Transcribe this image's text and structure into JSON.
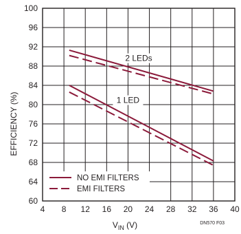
{
  "chart_data": {
    "type": "line",
    "ylabel": "EFFICIENCY (%)",
    "xlabel_main": "V",
    "xlabel_sub": "IN",
    "xlabel_unit": " (V)",
    "xlim": [
      4,
      40
    ],
    "ylim": [
      60,
      100
    ],
    "x_ticks": [
      4,
      8,
      12,
      16,
      20,
      24,
      28,
      32,
      36,
      40
    ],
    "y_ticks": [
      60,
      64,
      68,
      72,
      76,
      80,
      84,
      88,
      92,
      96,
      100
    ],
    "grid": true,
    "colors": {
      "series": "#8b1a3a",
      "grid": "#231f20",
      "frame": "#231f20",
      "text": "#231f20"
    },
    "series": [
      {
        "group": "2 LEDs",
        "style": "solid",
        "x": [
          9,
          36
        ],
        "y": [
          91.3,
          82.8
        ]
      },
      {
        "group": "2 LEDs",
        "style": "dashed",
        "x": [
          9,
          36
        ],
        "y": [
          90.2,
          82.2
        ]
      },
      {
        "group": "1 LED",
        "style": "solid",
        "x": [
          9,
          36
        ],
        "y": [
          84.0,
          68.3
        ]
      },
      {
        "group": "1 LED",
        "style": "dashed",
        "x": [
          9,
          36
        ],
        "y": [
          82.6,
          67.4
        ]
      }
    ],
    "annotations": [
      {
        "text": "2 LEDs",
        "x": 22,
        "y": 89.2
      },
      {
        "text": "1 LED",
        "x": 20,
        "y": 80.5
      }
    ],
    "legend": {
      "placement": "bottom-left",
      "entries": [
        {
          "label": "NO EMI FILTERS",
          "style": "solid"
        },
        {
          "label": "EMI FILTERS",
          "style": "dashed"
        }
      ]
    },
    "code": "DN570 F03"
  }
}
